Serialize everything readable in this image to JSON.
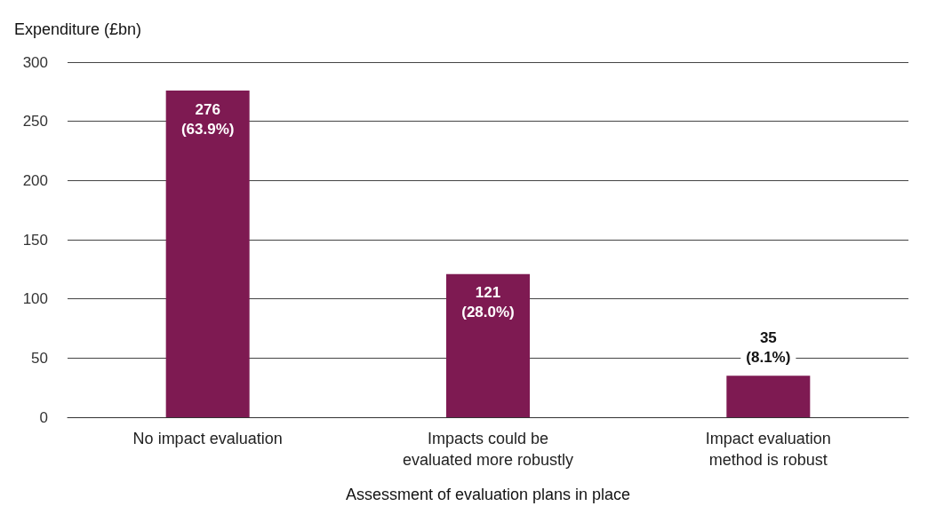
{
  "chart_data": {
    "type": "bar",
    "ylabel": "Expenditure (£bn)",
    "xlabel": "Assessment of evaluation plans in place",
    "categories": [
      "No impact evaluation",
      "Impacts could be\nevaluated more robustly",
      "Impact evaluation\nmethod is robust"
    ],
    "values": [
      276,
      121,
      35
    ],
    "color": "#7e1a52",
    "value_labels": [
      "276\n(63.9%)",
      "121\n(28.0%)",
      "35\n(8.1%)"
    ],
    "ylim": [
      0,
      300
    ],
    "yticks": [
      0,
      50,
      100,
      150,
      200,
      250,
      300
    ],
    "grid": "y"
  }
}
